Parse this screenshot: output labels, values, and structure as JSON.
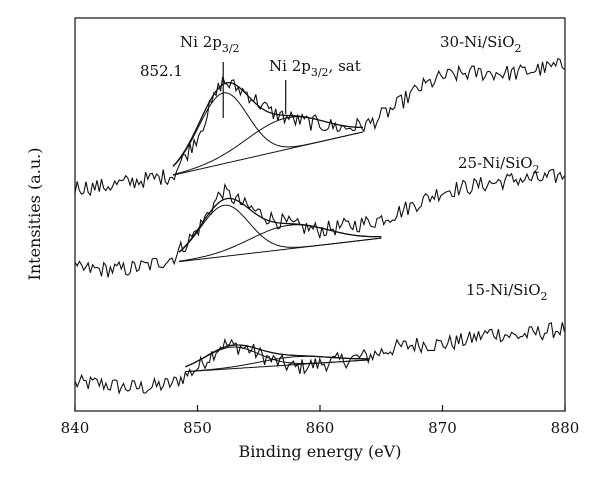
{
  "chart_data": {
    "type": "line",
    "title": "",
    "xlabel": "Binding energy (eV)",
    "ylabel": "Intensities (a.u.)",
    "xlim": [
      840,
      880
    ],
    "ylim": [
      0,
      100
    ],
    "x_ticks": [
      "840",
      "850",
      "860",
      "870",
      "880"
    ],
    "y_ticks": [],
    "grid": false,
    "legend": "none",
    "series": [
      {
        "name": "15-Ni/SiO2",
        "label_main": "15-Ni/SiO",
        "label_sub": "2",
        "color": "#111111",
        "x": [
          840,
          842,
          844,
          846,
          848,
          850,
          852,
          854,
          856,
          858,
          860,
          862,
          864,
          866,
          868,
          870,
          872,
          874,
          876,
          878,
          880
        ],
        "y": [
          7,
          7,
          6,
          6,
          7,
          11,
          17,
          16,
          13,
          11,
          12,
          13,
          14,
          16,
          17,
          17,
          18,
          20,
          19,
          20,
          21
        ]
      },
      {
        "name": "25-Ni/SiO2",
        "label_main": "25-Ni/SiO",
        "label_sub": "2",
        "color": "#111111",
        "x": [
          840,
          842,
          844,
          846,
          848,
          850,
          852,
          854,
          856,
          858,
          860,
          862,
          864,
          866,
          868,
          870,
          872,
          874,
          876,
          878,
          880
        ],
        "y": [
          36,
          36,
          36,
          37,
          39,
          46,
          56,
          52,
          49,
          47,
          46,
          47,
          48,
          50,
          53,
          56,
          57,
          58,
          59,
          59,
          60
        ]
      },
      {
        "name": "30-Ni/SiO2",
        "label_main": "30-Ni/SiO",
        "label_sub": "2",
        "color": "#111111",
        "x": [
          840,
          842,
          844,
          846,
          848,
          850,
          852,
          854,
          856,
          858,
          860,
          862,
          864,
          866,
          868,
          870,
          872,
          874,
          876,
          878,
          880
        ],
        "y": [
          57,
          57,
          58,
          59,
          60,
          70,
          84,
          81,
          76,
          74,
          73,
          72,
          73,
          77,
          82,
          85,
          86,
          86,
          86,
          87,
          88
        ]
      }
    ],
    "fits": [
      {
        "series": "15-Ni/SiO2",
        "x_range": [
          849,
          864
        ],
        "baseline": [
          10,
          13
        ],
        "peaks": [
          {
            "name": "Ni 2p3/2",
            "center": 852.8,
            "height": 5.5,
            "width": 2.2
          },
          {
            "name": "Ni 2p3/2, sat",
            "center": 858.0,
            "height": 2.0,
            "width": 3.0
          }
        ]
      },
      {
        "series": "25-Ni/SiO2",
        "x_range": [
          848.5,
          865
        ],
        "baseline": [
          38,
          44
        ],
        "peaks": [
          {
            "name": "Ni 2p3/2",
            "center": 852.2,
            "height": 13,
            "width": 2.0
          },
          {
            "name": "Ni 2p3/2, sat",
            "center": 857.5,
            "height": 6,
            "width": 3.2
          }
        ]
      },
      {
        "series": "30-Ni/SiO2",
        "x_range": [
          848,
          863.5
        ],
        "baseline": [
          60,
          71
        ],
        "peaks": [
          {
            "name": "Ni 2p3/2",
            "center": 852.1,
            "height": 18,
            "width": 2.0
          },
          {
            "name": "Ni 2p3/2, sat",
            "center": 857.2,
            "height": 8,
            "width": 3.2
          }
        ]
      }
    ],
    "annotations": {
      "peak_value": "852.1",
      "peak_label_main": "Ni 2p",
      "peak_label_sub": "3/2",
      "sat_label_main": "Ni 2p",
      "sat_label_sub": "3/2",
      "sat_label_suffix": ", sat",
      "peak_marker_x": 852.1,
      "sat_marker_x": 857.2
    }
  }
}
